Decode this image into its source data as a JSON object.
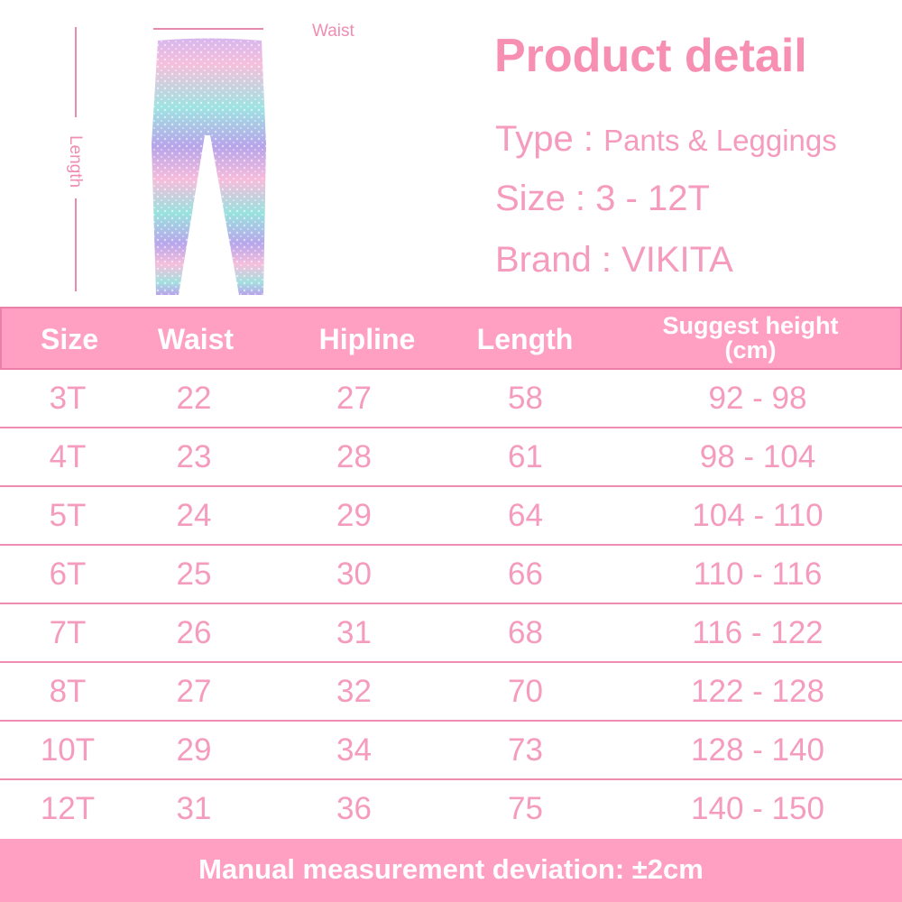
{
  "diagram": {
    "waist_label": "Waist",
    "length_label": "Length"
  },
  "product": {
    "title": "Product detail",
    "specs": [
      {
        "label": "Type : ",
        "value": "Pants & Leggings"
      },
      {
        "label": "Size : ",
        "value": "3 - 12T"
      },
      {
        "label": "Brand : ",
        "value": "VIKITA"
      }
    ]
  },
  "table": {
    "headers": [
      "Size",
      "Waist",
      "Hipline",
      "Length",
      "Suggest height",
      "(cm)"
    ],
    "rows": [
      [
        "3T",
        "22",
        "27",
        "58",
        "92 - 98"
      ],
      [
        "4T",
        "23",
        "28",
        "61",
        "98 - 104"
      ],
      [
        "5T",
        "24",
        "29",
        "64",
        "104 - 110"
      ],
      [
        "6T",
        "25",
        "30",
        "66",
        "110 - 116"
      ],
      [
        "7T",
        "26",
        "31",
        "68",
        "116 - 122"
      ],
      [
        "8T",
        "27",
        "32",
        "70",
        "122 - 128"
      ],
      [
        "10T",
        "29",
        "34",
        "73",
        "128 - 140"
      ],
      [
        "12T",
        "31",
        "36",
        "75",
        "140 - 150"
      ]
    ]
  },
  "footer": "Manual measurement deviation: ±2cm",
  "colors": {
    "accent": "#ff9fc2",
    "text": "#f59bbd",
    "title": "#f78fb3"
  }
}
